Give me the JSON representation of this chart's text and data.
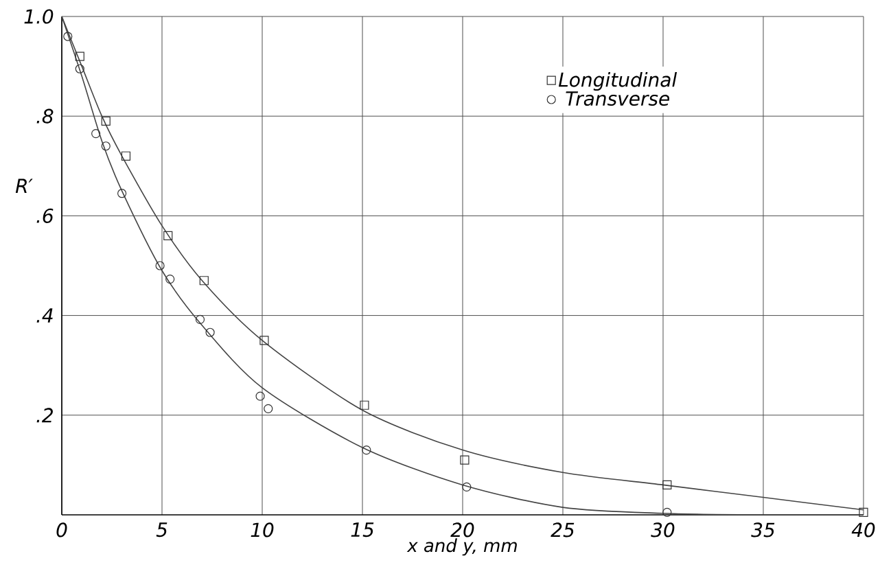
{
  "chart_data": {
    "type": "scatter",
    "xlabel": "x and y, mm",
    "ylabel": "R′",
    "xlim": [
      0,
      40
    ],
    "ylim": [
      0,
      1
    ],
    "xticks": [
      0,
      5,
      10,
      15,
      20,
      25,
      30,
      35,
      40
    ],
    "yticks": [
      {
        "value": 0.2,
        "label": ".2"
      },
      {
        "value": 0.4,
        "label": ".4"
      },
      {
        "value": 0.6,
        "label": ".6"
      },
      {
        "value": 0.8,
        "label": ".8"
      },
      {
        "value": 1.0,
        "label": "1.0"
      }
    ],
    "grid": true,
    "legend": "top right",
    "series": [
      {
        "name": "Longitudinal",
        "marker": "square",
        "color": "#333333",
        "x": [
          0.9,
          2.2,
          3.2,
          5.3,
          7.1,
          10.1,
          15.1,
          20.1,
          30.2,
          40
        ],
        "values": [
          0.92,
          0.79,
          0.72,
          0.56,
          0.47,
          0.35,
          0.22,
          0.11,
          0.06,
          0.005
        ]
      },
      {
        "name": "Transverse",
        "marker": "circle",
        "color": "#333333",
        "x": [
          0.3,
          0.9,
          1.7,
          2.2,
          3.0,
          4.9,
          5.4,
          6.9,
          7.4,
          9.9,
          10.3,
          15.2,
          20.2,
          30.2
        ],
        "values": [
          0.96,
          0.895,
          0.765,
          0.74,
          0.645,
          0.5,
          0.473,
          0.392,
          0.366,
          0.238,
          0.213,
          0.13,
          0.056,
          0.005
        ]
      },
      {
        "type": "line",
        "color": "#444444",
        "x": [
          0,
          1,
          2,
          3,
          5,
          7,
          10,
          15,
          20,
          25,
          30,
          35,
          40
        ],
        "values": [
          1.0,
          0.9,
          0.8,
          0.72,
          0.58,
          0.47,
          0.35,
          0.21,
          0.13,
          0.085,
          0.06,
          0.035,
          0.01
        ]
      },
      {
        "type": "line",
        "color": "#444444",
        "x": [
          0,
          1,
          2,
          3,
          5,
          7,
          10,
          15,
          20,
          25,
          30,
          35,
          40
        ],
        "values": [
          1.0,
          0.88,
          0.75,
          0.65,
          0.49,
          0.38,
          0.255,
          0.135,
          0.06,
          0.015,
          0.003,
          0.0,
          0.0
        ]
      }
    ]
  }
}
